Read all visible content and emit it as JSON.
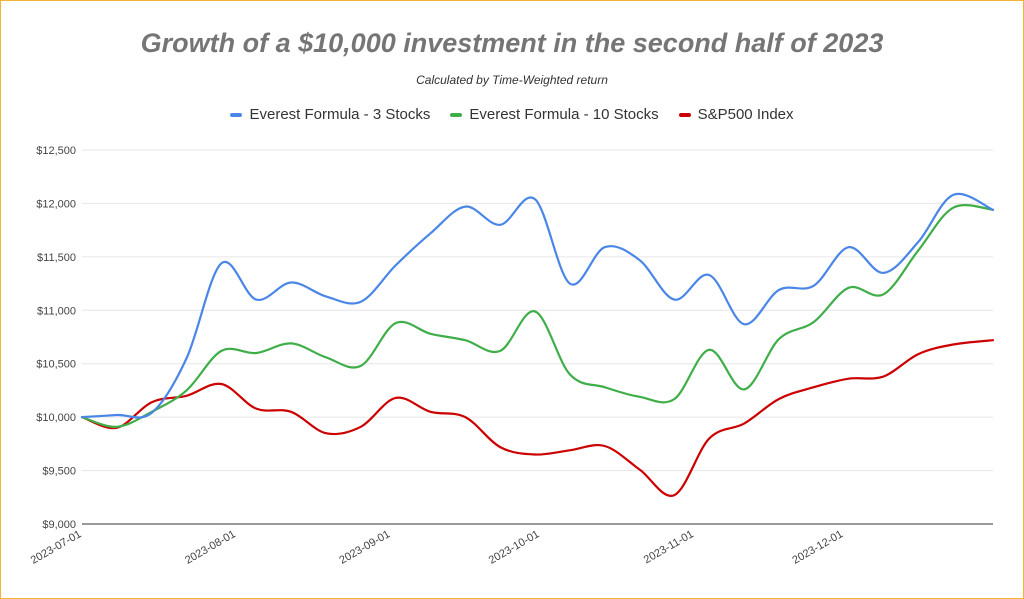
{
  "chart_data": {
    "type": "line",
    "title": "Growth of a $10,000 investment in the second half of 2023",
    "subtitle": "Calculated by Time-Weighted return",
    "legend_position": "top",
    "grid": true,
    "ylim": [
      9000,
      12500
    ],
    "y_ticks": [
      9000,
      9500,
      10000,
      10500,
      11000,
      11500,
      12000,
      12500
    ],
    "y_tick_labels": [
      "$9,000",
      "$9,500",
      "$10,000",
      "$10,500",
      "$11,000",
      "$11,500",
      "$12,000",
      "$12,500"
    ],
    "x_range": [
      "2023-07-01",
      "2023-12-31"
    ],
    "x_ticks": [
      "2023-07-01",
      "2023-08-01",
      "2023-09-01",
      "2023-10-01",
      "2023-11-01",
      "2023-12-01"
    ],
    "series": [
      {
        "name": "Everest Formula - 3 Stocks",
        "color": "#4a86e8",
        "points": [
          [
            "2023-07-01",
            10000
          ],
          [
            "2023-07-08",
            10020
          ],
          [
            "2023-07-15",
            10040
          ],
          [
            "2023-07-22",
            10550
          ],
          [
            "2023-07-29",
            11440
          ],
          [
            "2023-08-05",
            11100
          ],
          [
            "2023-08-12",
            11260
          ],
          [
            "2023-08-19",
            11130
          ],
          [
            "2023-08-26",
            11080
          ],
          [
            "2023-09-02",
            11420
          ],
          [
            "2023-09-09",
            11720
          ],
          [
            "2023-09-16",
            11970
          ],
          [
            "2023-09-23",
            11800
          ],
          [
            "2023-09-30",
            12040
          ],
          [
            "2023-10-07",
            11250
          ],
          [
            "2023-10-14",
            11590
          ],
          [
            "2023-10-21",
            11470
          ],
          [
            "2023-10-28",
            11100
          ],
          [
            "2023-11-04",
            11330
          ],
          [
            "2023-11-11",
            10870
          ],
          [
            "2023-11-18",
            11190
          ],
          [
            "2023-11-25",
            11230
          ],
          [
            "2023-12-02",
            11590
          ],
          [
            "2023-12-09",
            11350
          ],
          [
            "2023-12-16",
            11640
          ],
          [
            "2023-12-23",
            12080
          ],
          [
            "2023-12-31",
            11940
          ]
        ]
      },
      {
        "name": "Everest Formula - 10 Stocks",
        "color": "#3fae49",
        "points": [
          [
            "2023-07-01",
            10000
          ],
          [
            "2023-07-08",
            9910
          ],
          [
            "2023-07-15",
            10050
          ],
          [
            "2023-07-22",
            10250
          ],
          [
            "2023-07-29",
            10620
          ],
          [
            "2023-08-05",
            10600
          ],
          [
            "2023-08-12",
            10690
          ],
          [
            "2023-08-19",
            10560
          ],
          [
            "2023-08-26",
            10480
          ],
          [
            "2023-09-02",
            10880
          ],
          [
            "2023-09-09",
            10780
          ],
          [
            "2023-09-16",
            10720
          ],
          [
            "2023-09-23",
            10620
          ],
          [
            "2023-09-30",
            10990
          ],
          [
            "2023-10-07",
            10400
          ],
          [
            "2023-10-14",
            10280
          ],
          [
            "2023-10-21",
            10190
          ],
          [
            "2023-10-28",
            10170
          ],
          [
            "2023-11-04",
            10630
          ],
          [
            "2023-11-11",
            10260
          ],
          [
            "2023-11-18",
            10730
          ],
          [
            "2023-11-25",
            10890
          ],
          [
            "2023-12-02",
            11210
          ],
          [
            "2023-12-09",
            11150
          ],
          [
            "2023-12-16",
            11560
          ],
          [
            "2023-12-23",
            11960
          ],
          [
            "2023-12-31",
            11940
          ]
        ]
      },
      {
        "name": "S&P500 Index",
        "color": "#cc0000",
        "points": [
          [
            "2023-07-01",
            10000
          ],
          [
            "2023-07-08",
            9900
          ],
          [
            "2023-07-15",
            10140
          ],
          [
            "2023-07-22",
            10200
          ],
          [
            "2023-07-29",
            10310
          ],
          [
            "2023-08-05",
            10080
          ],
          [
            "2023-08-12",
            10050
          ],
          [
            "2023-08-19",
            9850
          ],
          [
            "2023-08-26",
            9910
          ],
          [
            "2023-09-02",
            10180
          ],
          [
            "2023-09-09",
            10050
          ],
          [
            "2023-09-16",
            10000
          ],
          [
            "2023-09-23",
            9720
          ],
          [
            "2023-09-30",
            9650
          ],
          [
            "2023-10-07",
            9690
          ],
          [
            "2023-10-14",
            9730
          ],
          [
            "2023-10-21",
            9510
          ],
          [
            "2023-10-28",
            9270
          ],
          [
            "2023-11-04",
            9800
          ],
          [
            "2023-11-11",
            9940
          ],
          [
            "2023-11-18",
            10170
          ],
          [
            "2023-11-25",
            10280
          ],
          [
            "2023-12-02",
            10360
          ],
          [
            "2023-12-09",
            10380
          ],
          [
            "2023-12-16",
            10590
          ],
          [
            "2023-12-23",
            10680
          ],
          [
            "2023-12-31",
            10720
          ]
        ]
      }
    ]
  }
}
